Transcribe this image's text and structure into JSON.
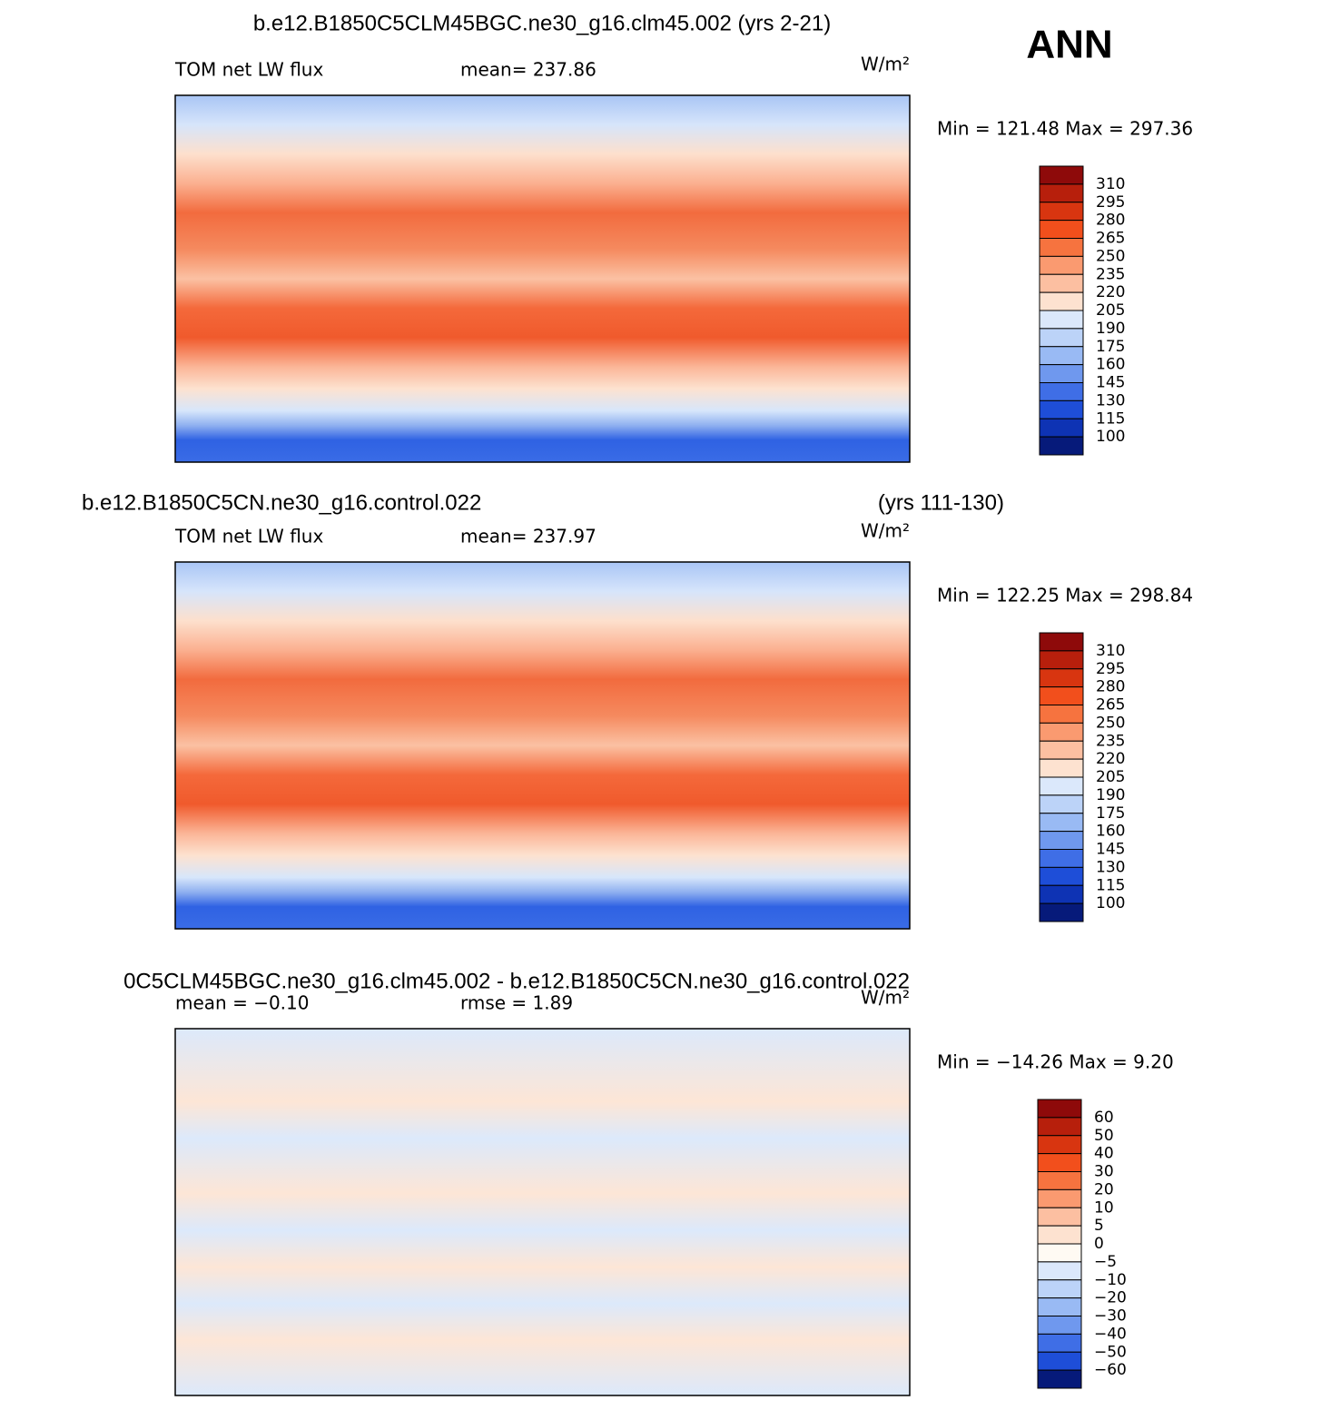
{
  "season": "ANN",
  "panels": [
    {
      "title": "b.e12.B1850C5CLM45BGC.ne30_g16.clm45.002 (yrs 2-21)",
      "left_label": "TOM net LW flux",
      "center_label": "mean= 237.86",
      "units": "W/m²",
      "min_max": "Min = 121.48 Max = 297.36",
      "colorbar_labels": [
        "310",
        "295",
        "280",
        "265",
        "250",
        "235",
        "220",
        "205",
        "190",
        "175",
        "160",
        "145",
        "130",
        "115",
        "100"
      ],
      "colorbar_colors": [
        "#8e0a0a",
        "#b71f0c",
        "#d83510",
        "#f24f1c",
        "#f6733f",
        "#fa9a70",
        "#fcbfa1",
        "#fde2d0",
        "#dbe8fb",
        "#bcd3f8",
        "#99baf4",
        "#6f98ee",
        "#3f6ee6",
        "#1e4ed8",
        "#0e33b4",
        "#061a7a"
      ],
      "map": "climatology"
    },
    {
      "title": "b.e12.B1850C5CN.ne30_g16.control.022",
      "title_right": "(yrs 111-130)",
      "left_label": "TOM net LW flux",
      "center_label": "mean= 237.97",
      "units": "W/m²",
      "min_max": "Min = 122.25 Max = 298.84",
      "colorbar_labels": [
        "310",
        "295",
        "280",
        "265",
        "250",
        "235",
        "220",
        "205",
        "190",
        "175",
        "160",
        "145",
        "130",
        "115",
        "100"
      ],
      "colorbar_colors": [
        "#8e0a0a",
        "#b71f0c",
        "#d83510",
        "#f24f1c",
        "#f6733f",
        "#fa9a70",
        "#fcbfa1",
        "#fde2d0",
        "#dbe8fb",
        "#bcd3f8",
        "#99baf4",
        "#6f98ee",
        "#3f6ee6",
        "#1e4ed8",
        "#0e33b4",
        "#061a7a"
      ],
      "map": "climatology"
    },
    {
      "title": "0C5CLM45BGC.ne30_g16.clm45.002 - b.e12.B1850C5CN.ne30_g16.control.022",
      "left_label": "mean =  −0.10",
      "center_label": "rmse =    1.89",
      "units": "W/m²",
      "min_max": "Min = −14.26 Max =    9.20",
      "colorbar_labels": [
        "60",
        "50",
        "40",
        "30",
        "20",
        "10",
        "5",
        "0",
        "−5",
        "−10",
        "−20",
        "−30",
        "−40",
        "−50",
        "−60"
      ],
      "colorbar_colors": [
        "#8e0a0a",
        "#b71f0c",
        "#d83510",
        "#f24f1c",
        "#f6733f",
        "#fa9a70",
        "#fcbfa1",
        "#fde2d0",
        "#fffaf3",
        "#dbe8fb",
        "#bcd3f8",
        "#99baf4",
        "#6f98ee",
        "#3f6ee6",
        "#1e4ed8",
        "#061a7a"
      ],
      "map": "difference"
    }
  ]
}
